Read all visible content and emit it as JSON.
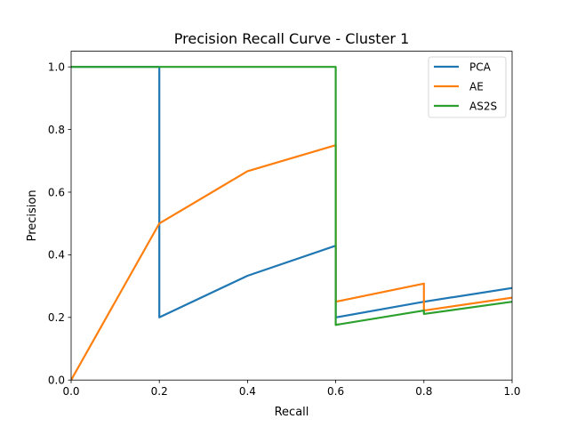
{
  "chart_data": {
    "type": "line",
    "title": "Precision Recall Curve - Cluster 1",
    "xlabel": "Recall",
    "ylabel": "Precision",
    "xlim": [
      0,
      1
    ],
    "ylim": [
      0,
      1.05
    ],
    "xticks": [
      0.0,
      0.2,
      0.4,
      0.6,
      0.8,
      1.0
    ],
    "yticks": [
      0.0,
      0.2,
      0.4,
      0.6,
      0.8,
      1.0
    ],
    "xtick_labels": [
      "0.0",
      "0.2",
      "0.4",
      "0.6",
      "0.8",
      "1.0"
    ],
    "ytick_labels": [
      "0.0",
      "0.2",
      "0.4",
      "0.6",
      "0.8",
      "1.0"
    ],
    "grid": false,
    "legend_position": "top-right",
    "series": [
      {
        "name": "PCA",
        "color": "#1f77b4",
        "x": [
          0.0,
          0.2,
          0.2,
          0.4,
          0.6,
          0.6,
          0.8,
          1.0
        ],
        "y": [
          1.0,
          1.0,
          0.2,
          0.333,
          0.429,
          0.2,
          0.25,
          0.294
        ]
      },
      {
        "name": "AE",
        "color": "#ff7f0e",
        "x": [
          0.0,
          0.2,
          0.4,
          0.6,
          0.6,
          0.8,
          0.8,
          1.0
        ],
        "y": [
          0.0,
          0.5,
          0.667,
          0.75,
          0.25,
          0.308,
          0.222,
          0.263
        ]
      },
      {
        "name": "AS2S",
        "color": "#2ca02c",
        "x": [
          0.0,
          0.6,
          0.6,
          0.8,
          0.8,
          1.0
        ],
        "y": [
          1.0,
          1.0,
          0.176,
          0.222,
          0.211,
          0.25
        ]
      }
    ]
  }
}
